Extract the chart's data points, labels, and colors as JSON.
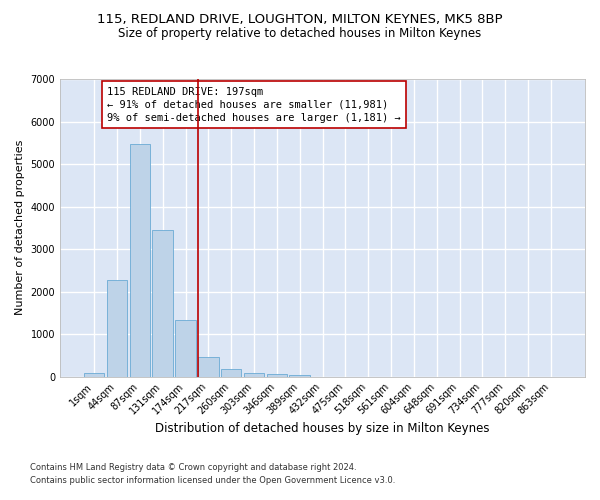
{
  "title": "115, REDLAND DRIVE, LOUGHTON, MILTON KEYNES, MK5 8BP",
  "subtitle": "Size of property relative to detached houses in Milton Keynes",
  "xlabel": "Distribution of detached houses by size in Milton Keynes",
  "ylabel": "Number of detached properties",
  "footnote1": "Contains HM Land Registry data © Crown copyright and database right 2024.",
  "footnote2": "Contains public sector information licensed under the Open Government Licence v3.0.",
  "bar_labels": [
    "1sqm",
    "44sqm",
    "87sqm",
    "131sqm",
    "174sqm",
    "217sqm",
    "260sqm",
    "303sqm",
    "346sqm",
    "389sqm",
    "432sqm",
    "475sqm",
    "518sqm",
    "561sqm",
    "604sqm",
    "648sqm",
    "691sqm",
    "734sqm",
    "777sqm",
    "820sqm",
    "863sqm"
  ],
  "bar_values": [
    80,
    2270,
    5480,
    3440,
    1320,
    460,
    175,
    95,
    55,
    35,
    0,
    0,
    0,
    0,
    0,
    0,
    0,
    0,
    0,
    0,
    0
  ],
  "bar_color": "#bed3e8",
  "bar_edgecolor": "#6aaad4",
  "ylim": [
    0,
    7000
  ],
  "yticks": [
    0,
    1000,
    2000,
    3000,
    4000,
    5000,
    6000,
    7000
  ],
  "annotation_text1": "115 REDLAND DRIVE: 197sqm",
  "annotation_text2": "← 91% of detached houses are smaller (11,981)",
  "annotation_text3": "9% of semi-detached houses are larger (1,181) →",
  "annotation_box_facecolor": "#ffffff",
  "annotation_box_edgecolor": "#bb0000",
  "vline_color": "#bb0000",
  "fig_facecolor": "#ffffff",
  "bg_color": "#dce6f5",
  "grid_color": "#ffffff",
  "title_fontsize": 9.5,
  "subtitle_fontsize": 8.5,
  "tick_fontsize": 7,
  "ylabel_fontsize": 8,
  "xlabel_fontsize": 8.5,
  "annotation_fontsize": 7.5,
  "footnote_fontsize": 6
}
